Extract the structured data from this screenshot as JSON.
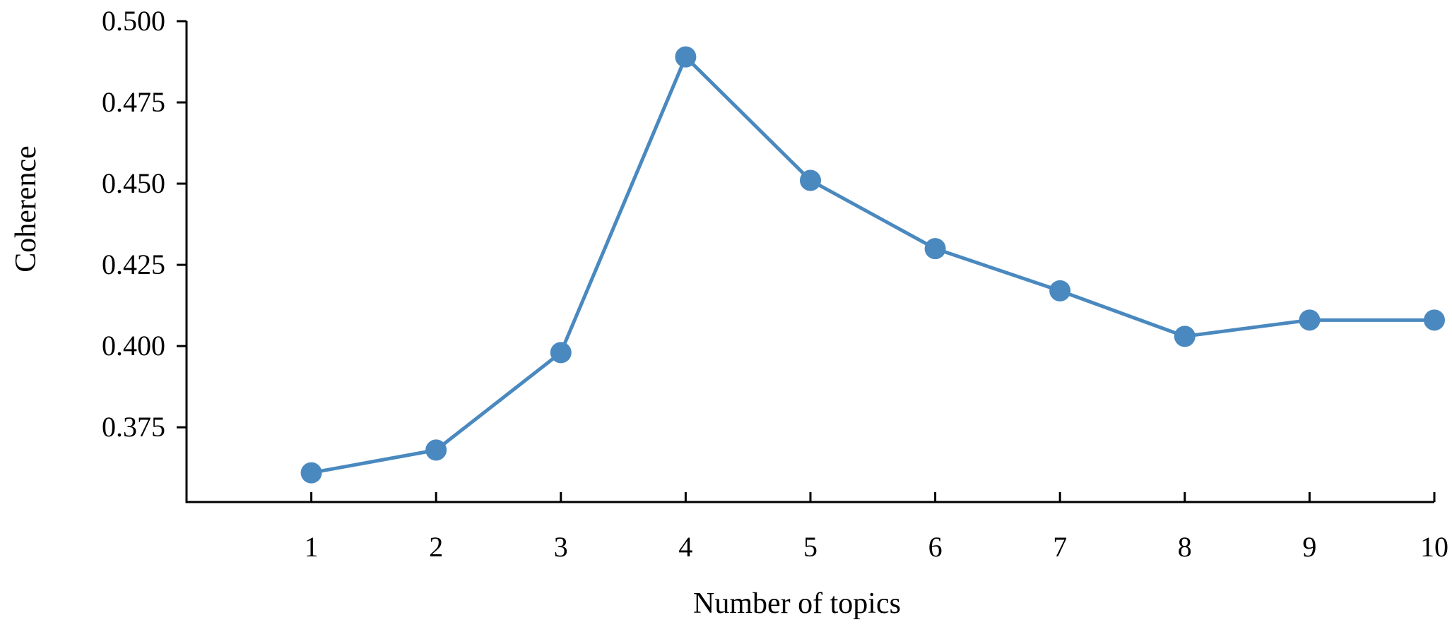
{
  "chart_data": {
    "type": "line",
    "title": "",
    "xlabel": "Number of topics",
    "ylabel": "Coherence",
    "x": [
      1,
      2,
      3,
      4,
      5,
      6,
      7,
      8,
      9,
      10
    ],
    "series": [
      {
        "values": [
          0.361,
          0.368,
          0.398,
          0.489,
          0.451,
          0.43,
          0.417,
          0.403,
          0.408,
          0.408
        ]
      }
    ],
    "x_ticks": [
      "1",
      "2",
      "3",
      "4",
      "5",
      "6",
      "7",
      "8",
      "9",
      "10"
    ],
    "y_ticks": [
      {
        "value": 0.375,
        "label": "0.375"
      },
      {
        "value": 0.4,
        "label": "0.400"
      },
      {
        "value": 0.425,
        "label": "0.425"
      },
      {
        "value": 0.45,
        "label": "0.450"
      },
      {
        "value": 0.475,
        "label": "0.475"
      },
      {
        "value": 0.5,
        "label": "0.500"
      }
    ],
    "ylim": [
      0.352,
      0.5
    ],
    "xlim": [
      0,
      10
    ],
    "grid": false,
    "legend": "none",
    "series_color": "#4a89bf"
  }
}
